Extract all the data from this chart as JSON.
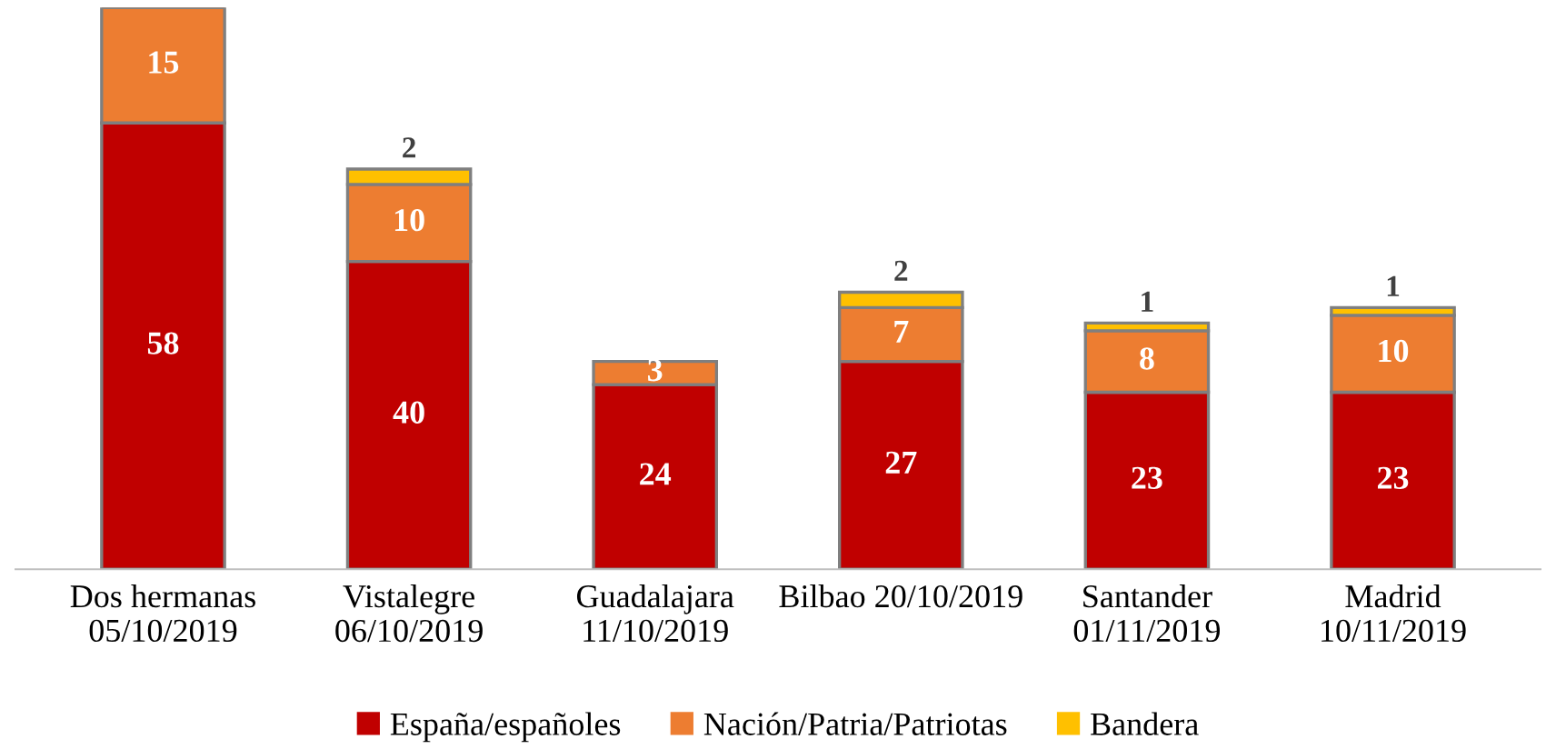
{
  "chart_data": {
    "type": "bar",
    "stacked": true,
    "data_labels": true,
    "legend": "bottom",
    "categories": [
      "Dos hermanas\n05/10/2019",
      "Vistalegre\n06/10/2019",
      "Guadalajara\n11/10/2019",
      "Bilbao 20/10/2019",
      "Santander\n01/11/2019",
      "Madrid\n10/11/2019"
    ],
    "series": [
      {
        "name": "España/españoles",
        "color": "#c00000",
        "values": [
          58,
          40,
          24,
          27,
          23,
          23
        ]
      },
      {
        "name": "Nación/Patria/Patriotas",
        "color": "#ed7d31",
        "values": [
          15,
          10,
          3,
          7,
          8,
          10
        ]
      },
      {
        "name": "Bandera",
        "color": "#ffc000",
        "values": [
          null,
          2,
          null,
          2,
          1,
          1
        ]
      }
    ]
  }
}
